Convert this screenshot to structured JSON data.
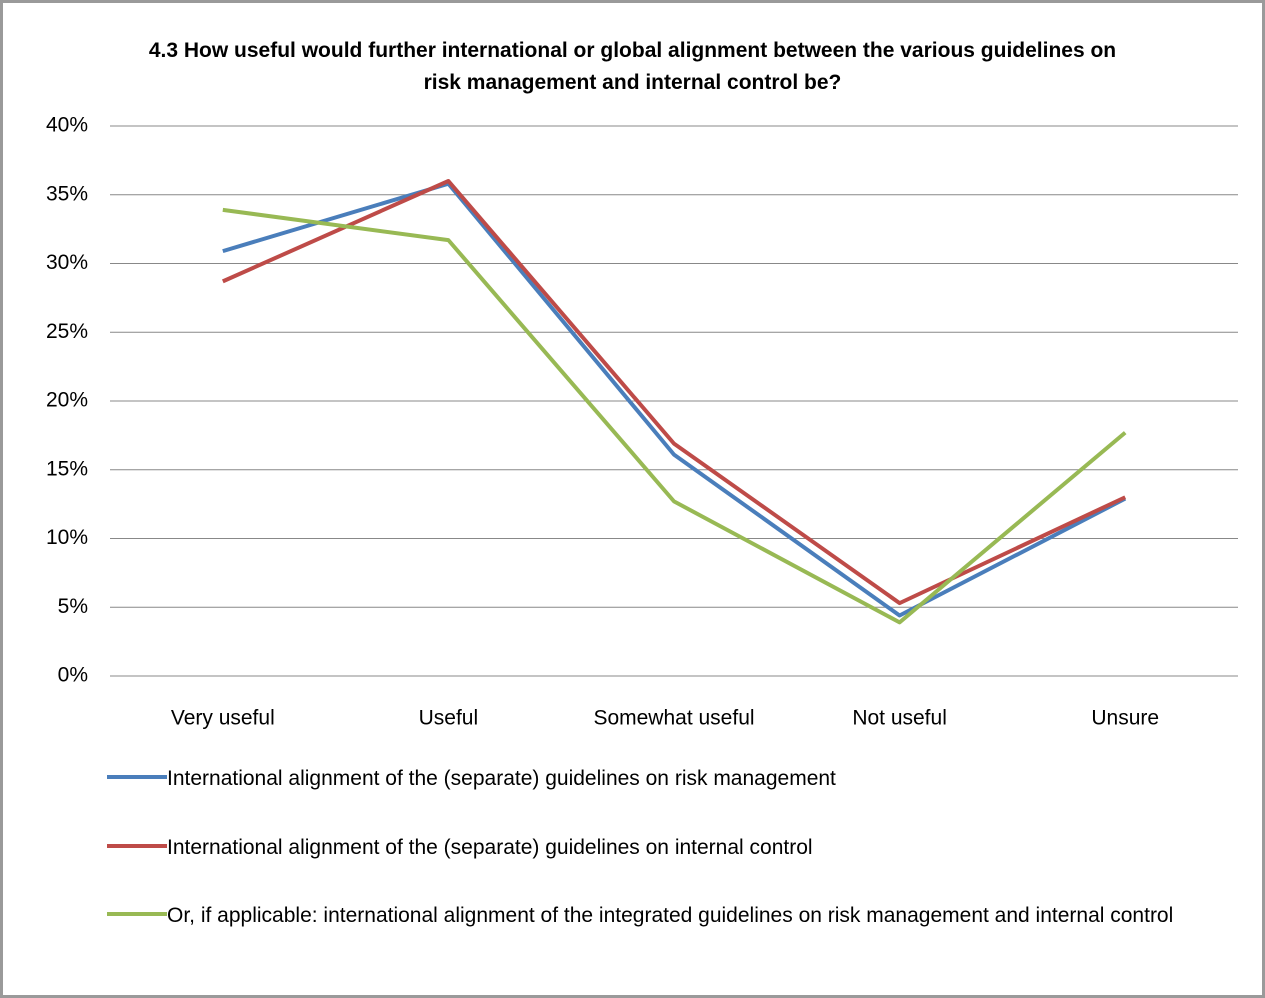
{
  "chart_data": {
    "type": "line",
    "title": "4.3 How useful would further international or global alignment between the various guidelines on risk management and internal control be?",
    "categories": [
      "Very useful",
      "Useful",
      "Somewhat useful",
      "Not useful",
      "Unsure"
    ],
    "series": [
      {
        "name": "International alignment of the (separate) guidelines on risk management",
        "color": "#4a7ebb",
        "values": [
          30.9,
          35.8,
          16.1,
          4.4,
          12.9
        ]
      },
      {
        "name": "International alignment of the (separate) guidelines on internal control",
        "color": "#be4b48",
        "values": [
          28.7,
          36.0,
          16.9,
          5.3,
          13.0
        ]
      },
      {
        "name": "Or, if applicable: international alignment of the integrated guidelines on risk management and internal control",
        "color": "#98b954",
        "values": [
          33.9,
          31.7,
          12.7,
          3.9,
          17.7
        ]
      }
    ],
    "ylim": [
      0,
      40
    ],
    "yticks": [
      {
        "value": 0,
        "label": "0%"
      },
      {
        "value": 5,
        "label": "5%"
      },
      {
        "value": 10,
        "label": "10%"
      },
      {
        "value": 15,
        "label": "15%"
      },
      {
        "value": 20,
        "label": "20%"
      },
      {
        "value": 25,
        "label": "25%"
      },
      {
        "value": 30,
        "label": "30%"
      },
      {
        "value": 35,
        "label": "35%"
      },
      {
        "value": 40,
        "label": "40%"
      }
    ],
    "grid": true,
    "legend": "bottom"
  }
}
